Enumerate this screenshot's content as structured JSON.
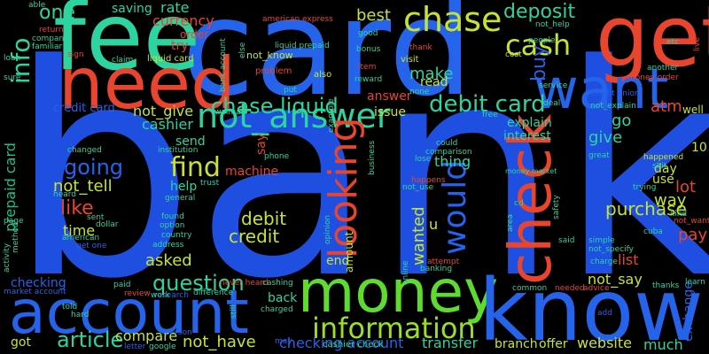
{
  "words": [
    {
      "text": "bank",
      "color": "#1F4FE0"
    },
    {
      "text": "card",
      "color": "#2563EB"
    },
    {
      "text": "fee",
      "color": "#2DD4A0"
    },
    {
      "text": "get",
      "color": "#E8442E"
    },
    {
      "text": "need",
      "color": "#E8442E"
    },
    {
      "text": "money",
      "color": "#5EDB2E"
    },
    {
      "text": "know",
      "color": "#2563EB"
    },
    {
      "text": "account",
      "color": "#2563EB"
    },
    {
      "text": "want",
      "color": "#2563EB"
    },
    {
      "text": "check",
      "color": "#E8442E"
    },
    {
      "text": "not_answer",
      "color": "#2DD4A0"
    },
    {
      "text": "looking",
      "color": "#E8442E"
    },
    {
      "text": "chase",
      "color": "#C6E332"
    },
    {
      "text": "information",
      "color": "#9BE026"
    },
    {
      "text": "would",
      "color": "#2563EB"
    },
    {
      "text": "find",
      "color": "#C6E332"
    },
    {
      "text": "deposit",
      "color": "#2DD4A0"
    },
    {
      "text": "cash",
      "color": "#C6E332"
    },
    {
      "text": "debit card",
      "color": "#2DD4A0"
    },
    {
      "text": "chase liquid",
      "color": "#2DD4A0"
    },
    {
      "text": "article",
      "color": "#2DD4A0"
    },
    {
      "text": "question",
      "color": "#2DD4A0"
    },
    {
      "text": "info",
      "color": "#2DD4A0"
    },
    {
      "text": "going",
      "color": "#2563EB"
    },
    {
      "text": "like",
      "color": "#E8442E"
    },
    {
      "text": "one",
      "color": "#2DD4A0"
    },
    {
      "text": "best",
      "color": "#C6E332"
    },
    {
      "text": "prepaid card",
      "color": "#1EC08A"
    },
    {
      "text": "not_give",
      "color": "#C6E332"
    },
    {
      "text": "not_tell",
      "color": "#C6E332"
    },
    {
      "text": "wanted",
      "color": "#C6E332"
    },
    {
      "text": "transfer",
      "color": "#2DD4A0"
    },
    {
      "text": "not_have",
      "color": "#C6E332"
    },
    {
      "text": "checking account",
      "color": "#2563EB"
    },
    {
      "text": "compare",
      "color": "#C6E332"
    },
    {
      "text": "buy",
      "color": "#2563EB"
    },
    {
      "text": "purchase",
      "color": "#C6E332"
    },
    {
      "text": "debit",
      "color": "#C6E332"
    },
    {
      "text": "credit",
      "color": "#C6E332"
    },
    {
      "text": "asked",
      "color": "#C6E332"
    },
    {
      "text": "make",
      "color": "#2DD4A0"
    },
    {
      "text": "go",
      "color": "#2DD4A0"
    },
    {
      "text": "give",
      "color": "#2DD4A0"
    },
    {
      "text": "atm",
      "color": "#E8442E"
    },
    {
      "text": "way",
      "color": "#C6E332"
    },
    {
      "text": "lot",
      "color": "#E8442E"
    },
    {
      "text": "pay",
      "color": "#E8442E"
    },
    {
      "text": "much",
      "color": "#2DD4A0"
    },
    {
      "text": "website",
      "color": "#C6E332"
    },
    {
      "text": "branch",
      "color": "#C6E332"
    },
    {
      "text": "offer",
      "color": "#C6E332"
    },
    {
      "text": "exchange",
      "color": "#2563EB"
    },
    {
      "text": "not_say",
      "color": "#C6E332"
    },
    {
      "text": "list",
      "color": "#E8442E"
    },
    {
      "text": "cashier",
      "color": "#2DD4A0"
    },
    {
      "text": "currency",
      "color": "#E8442E"
    },
    {
      "text": "rate",
      "color": "#2DD4A0"
    },
    {
      "text": "saving",
      "color": "#2DD4A0"
    },
    {
      "text": "order",
      "color": "#E8442E"
    },
    {
      "text": "try",
      "color": "#E8442E"
    },
    {
      "text": "send",
      "color": "#2DD4A0"
    },
    {
      "text": "time",
      "color": "#C6E332"
    },
    {
      "text": "checking",
      "color": "#2563EB"
    },
    {
      "text": "back",
      "color": "#2DD4A0"
    },
    {
      "text": "got",
      "color": "#C6E332"
    },
    {
      "text": "amount",
      "color": "#C6E332"
    },
    {
      "text": "end",
      "color": "#C6E332"
    },
    {
      "text": "read",
      "color": "#C6E332"
    },
    {
      "text": "answer",
      "color": "#E8442E"
    },
    {
      "text": "issue",
      "color": "#C6E332"
    },
    {
      "text": "explain",
      "color": "#2DD4A0"
    },
    {
      "text": "interest",
      "color": "#2DD4A0"
    },
    {
      "text": "thing",
      "color": "#2DD4A0"
    },
    {
      "text": "credit card",
      "color": "#2563EB"
    },
    {
      "text": "machine",
      "color": "#E8442E"
    },
    {
      "text": "help",
      "color": "#2DD4A0"
    },
    {
      "text": "u",
      "color": "#C6E332"
    },
    {
      "text": "day",
      "color": "#C6E332"
    },
    {
      "text": "use",
      "color": "#C6E332"
    },
    {
      "text": "well",
      "color": "#C6E332"
    },
    {
      "text": "10",
      "color": "#C6E332"
    },
    {
      "text": "say",
      "color": "#E8442E"
    },
    {
      "text": "cashier check",
      "color": "#2DD4A0"
    },
    {
      "text": "liquid card",
      "color": "#C6E332"
    },
    {
      "text": "not_know",
      "color": "#C6E332"
    },
    {
      "text": "not_help",
      "color": "#2DD4A0"
    },
    {
      "text": "bank account",
      "color": "#2DD4A0"
    },
    {
      "text": "not_explain",
      "color": "#2DD4A0"
    },
    {
      "text": "money order",
      "color": "#E8442E"
    },
    {
      "text": "american express",
      "color": "#E8442E"
    },
    {
      "text": "phone",
      "color": "#2DD4A0"
    },
    {
      "text": "dollar",
      "color": "#2DD4A0"
    },
    {
      "text": "also",
      "color": "#C6E332"
    },
    {
      "text": "problem",
      "color": "#E8442E"
    },
    {
      "text": "visit",
      "color": "#C6E332"
    },
    {
      "text": "thank",
      "color": "#E8442E"
    },
    {
      "text": "reward",
      "color": "#2DD4A0"
    },
    {
      "text": "bonus",
      "color": "#2DD4A0"
    },
    {
      "text": "good",
      "color": "#2DD4A0"
    },
    {
      "text": "item",
      "color": "#E8442E"
    },
    {
      "text": "service",
      "color": "#2DD4A0"
    },
    {
      "text": "cost",
      "color": "#C6E332"
    },
    {
      "text": "deal",
      "color": "#2DD4A0"
    },
    {
      "text": "live",
      "color": "#E8442E"
    },
    {
      "text": "another",
      "color": "#2DD4A0"
    },
    {
      "text": "credit union",
      "color": "#2563EB"
    },
    {
      "text": "safety",
      "color": "#2DD4A0"
    },
    {
      "text": "free",
      "color": "#2DD4A0"
    },
    {
      "text": "comparison",
      "color": "#2DD4A0"
    },
    {
      "text": "could",
      "color": "#2DD4A0"
    },
    {
      "text": "business",
      "color": "#2DD4A0"
    },
    {
      "text": "happened",
      "color": "#C6E332"
    },
    {
      "text": "trying",
      "color": "#2DD4A0"
    },
    {
      "text": "kind",
      "color": "#2DD4A0"
    },
    {
      "text": "not_want",
      "color": "#E8442E"
    },
    {
      "text": "simple",
      "color": "#2DD4A0"
    },
    {
      "text": "not_specify",
      "color": "#2DD4A0"
    },
    {
      "text": "charge",
      "color": "#2DD4A0"
    },
    {
      "text": "thanks",
      "color": "#2DD4A0"
    },
    {
      "text": "learn",
      "color": "#2DD4A0"
    },
    {
      "text": "advice",
      "color": "#E8442E"
    },
    {
      "text": "needed",
      "color": "#E8442E"
    },
    {
      "text": "common",
      "color": "#2DD4A0"
    },
    {
      "text": "paid",
      "color": "#2DD4A0"
    },
    {
      "text": "review",
      "color": "#E8442E"
    },
    {
      "text": "research",
      "color": "#2563EB"
    },
    {
      "text": "difference",
      "color": "#2DD4A0"
    },
    {
      "text": "never heard",
      "color": "#E8442E"
    },
    {
      "text": "cashing",
      "color": "#2DD4A0"
    },
    {
      "text": "charged",
      "color": "#2DD4A0"
    },
    {
      "text": "still",
      "color": "#2DD4A0"
    },
    {
      "text": "letter",
      "color": "#2563EB"
    },
    {
      "text": "google",
      "color": "#2DD4A0"
    },
    {
      "text": "may",
      "color": "#2563EB"
    },
    {
      "text": "add",
      "color": "#2563EB"
    },
    {
      "text": "hard",
      "color": "#2DD4A0"
    },
    {
      "text": "told",
      "color": "#2DD4A0"
    },
    {
      "text": "market account",
      "color": "#2563EB"
    },
    {
      "text": "american",
      "color": "#2DD4A0"
    },
    {
      "text": "get one",
      "color": "#2563EB"
    },
    {
      "text": "address",
      "color": "#2DD4A0"
    },
    {
      "text": "country",
      "color": "#2DD4A0"
    },
    {
      "text": "option",
      "color": "#2DD4A0"
    },
    {
      "text": "general",
      "color": "#2DD4A0"
    },
    {
      "text": "found",
      "color": "#2DD4A0"
    },
    {
      "text": "trust",
      "color": "#2DD4A0"
    },
    {
      "text": "institution",
      "color": "#2DD4A0"
    },
    {
      "text": "changed",
      "color": "#2DD4A0"
    },
    {
      "text": "walmart",
      "color": "#2DD4A0"
    },
    {
      "text": "put",
      "color": "#2DD4A0"
    },
    {
      "text": "sign",
      "color": "#E8442E"
    },
    {
      "text": "claim",
      "color": "#2DD4A0"
    },
    {
      "text": "else",
      "color": "#2DD4A0"
    },
    {
      "text": "company",
      "color": "#2DD4A0"
    },
    {
      "text": "familiar",
      "color": "#2DD4A0"
    },
    {
      "text": "able",
      "color": "#2DD4A0"
    },
    {
      "text": "loan",
      "color": "#2DD4A0"
    },
    {
      "text": "sure",
      "color": "#2DD4A0"
    },
    {
      "text": "liquid prepaid",
      "color": "#2DD4A0"
    },
    {
      "text": "none",
      "color": "#2DD4A0"
    },
    {
      "text": "people",
      "color": "#2DD4A0"
    },
    {
      "text": "etc",
      "color": "#2DD4A0"
    },
    {
      "text": "cuba",
      "color": "#2DD4A0"
    },
    {
      "text": "said",
      "color": "#2DD4A0"
    },
    {
      "text": "shit",
      "color": "#2DD4A0"
    },
    {
      "text": "cd",
      "color": "#2DD4A0"
    },
    {
      "text": "not_use",
      "color": "#2DD4A0"
    },
    {
      "text": "lose",
      "color": "#2DD4A0"
    },
    {
      "text": "great",
      "color": "#2DD4A0"
    },
    {
      "text": "online",
      "color": "#2DD4A0"
    },
    {
      "text": "banking",
      "color": "#2DD4A0"
    },
    {
      "text": "attempt",
      "color": "#E8442E"
    },
    {
      "text": "opinion",
      "color": "#2DD4A0"
    },
    {
      "text": "work",
      "color": "#2DD4A0"
    },
    {
      "text": "person",
      "color": "#2563EB"
    },
    {
      "text": "page",
      "color": "#2DD4A0"
    },
    {
      "text": "method",
      "color": "#2DD4A0"
    },
    {
      "text": "activity",
      "color": "#2DD4A0"
    },
    {
      "text": "sent",
      "color": "#2DD4A0"
    },
    {
      "text": "heard",
      "color": "#2DD4A0"
    },
    {
      "text": "happens",
      "color": "#E8442E"
    },
    {
      "text": "money market",
      "color": "#2DD4A0"
    },
    {
      "text": "area",
      "color": "#2DD4A0"
    },
    {
      "text": "return",
      "color": "#E8442E"
    },
    {
      "text": "example",
      "color": "#2DD4A0"
    }
  ]
}
